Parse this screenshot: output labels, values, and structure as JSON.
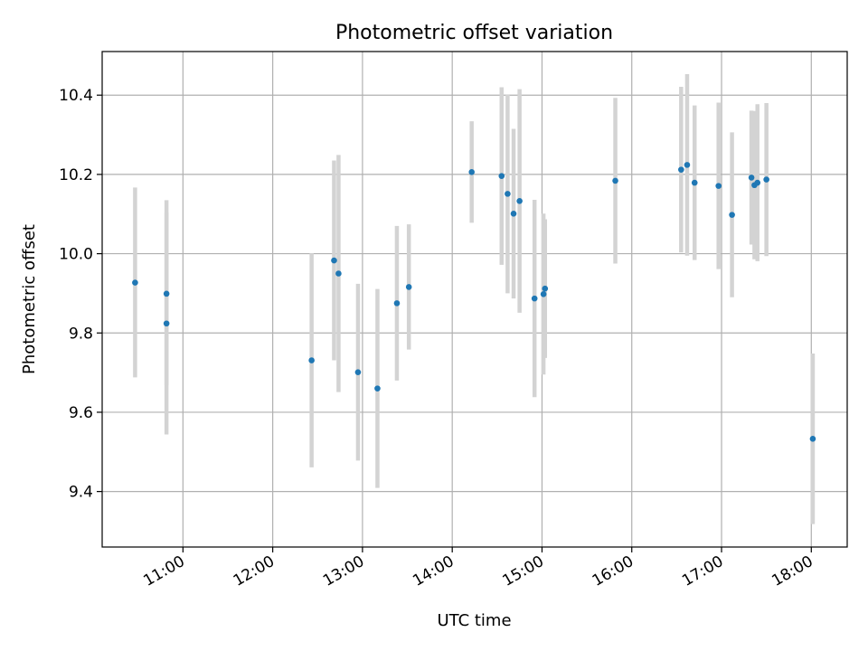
{
  "chart_data": {
    "type": "scatter",
    "title": "Photometric offset variation",
    "xlabel": "UTC time",
    "ylabel": "Photometric offset",
    "x_axis": "time",
    "xlim": [
      "10:06",
      "18:24"
    ],
    "ylim": [
      9.26,
      10.51
    ],
    "xticks": [
      "11:00",
      "12:00",
      "13:00",
      "14:00",
      "15:00",
      "16:00",
      "17:00",
      "18:00"
    ],
    "yticks": [
      9.4,
      9.6,
      9.8,
      10.0,
      10.2,
      10.4
    ],
    "grid": true,
    "legend": "none",
    "colors": {
      "marker": "#1f77b4",
      "errorbar": "#d3d3d3"
    },
    "points": [
      {
        "x": "10:28",
        "y": 9.927,
        "ylow": 9.688,
        "yhigh": 10.167
      },
      {
        "x": "10:49",
        "y": 9.899,
        "ylow": 9.668,
        "yhigh": 10.135
      },
      {
        "x": "10:49",
        "y": 9.824,
        "ylow": 9.544,
        "yhigh": 10.104
      },
      {
        "x": "12:26",
        "y": 9.731,
        "ylow": 9.461,
        "yhigh": 10.001
      },
      {
        "x": "12:41",
        "y": 9.983,
        "ylow": 9.731,
        "yhigh": 10.235
      },
      {
        "x": "12:44",
        "y": 9.95,
        "ylow": 9.651,
        "yhigh": 10.249
      },
      {
        "x": "12:57",
        "y": 9.701,
        "ylow": 9.478,
        "yhigh": 9.924
      },
      {
        "x": "13:10",
        "y": 9.66,
        "ylow": 9.409,
        "yhigh": 9.911
      },
      {
        "x": "13:23",
        "y": 9.875,
        "ylow": 9.68,
        "yhigh": 10.07
      },
      {
        "x": "13:31",
        "y": 9.916,
        "ylow": 9.758,
        "yhigh": 10.074
      },
      {
        "x": "14:13",
        "y": 10.206,
        "ylow": 10.078,
        "yhigh": 10.334
      },
      {
        "x": "14:33",
        "y": 10.196,
        "ylow": 9.972,
        "yhigh": 10.42
      },
      {
        "x": "14:37",
        "y": 10.151,
        "ylow": 9.9,
        "yhigh": 10.402
      },
      {
        "x": "14:41",
        "y": 10.101,
        "ylow": 9.887,
        "yhigh": 10.315
      },
      {
        "x": "14:45",
        "y": 10.133,
        "ylow": 9.851,
        "yhigh": 10.415
      },
      {
        "x": "14:55",
        "y": 9.887,
        "ylow": 9.638,
        "yhigh": 10.136
      },
      {
        "x": "15:01",
        "y": 9.898,
        "ylow": 9.695,
        "yhigh": 10.101
      },
      {
        "x": "15:02",
        "y": 9.912,
        "ylow": 9.737,
        "yhigh": 10.087
      },
      {
        "x": "15:49",
        "y": 10.184,
        "ylow": 9.975,
        "yhigh": 10.393
      },
      {
        "x": "16:33",
        "y": 10.212,
        "ylow": 10.003,
        "yhigh": 10.421
      },
      {
        "x": "16:37",
        "y": 10.224,
        "ylow": 9.995,
        "yhigh": 10.453
      },
      {
        "x": "16:42",
        "y": 10.179,
        "ylow": 9.984,
        "yhigh": 10.374
      },
      {
        "x": "16:58",
        "y": 10.171,
        "ylow": 9.961,
        "yhigh": 10.381
      },
      {
        "x": "17:07",
        "y": 10.098,
        "ylow": 9.89,
        "yhigh": 10.306
      },
      {
        "x": "17:20",
        "y": 10.192,
        "ylow": 10.023,
        "yhigh": 10.361
      },
      {
        "x": "17:22",
        "y": 10.173,
        "ylow": 9.986,
        "yhigh": 10.36
      },
      {
        "x": "17:24",
        "y": 10.179,
        "ylow": 9.981,
        "yhigh": 10.377
      },
      {
        "x": "17:30",
        "y": 10.187,
        "ylow": 9.994,
        "yhigh": 10.38
      },
      {
        "x": "18:01",
        "y": 9.533,
        "ylow": 9.318,
        "yhigh": 9.748
      }
    ]
  }
}
